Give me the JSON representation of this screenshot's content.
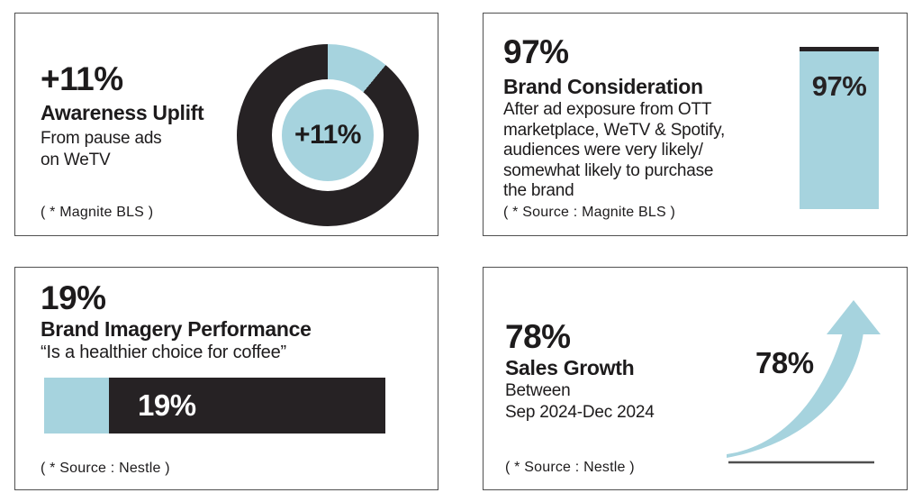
{
  "colors": {
    "accent_blue": "#a6d3de",
    "dark": "#262224",
    "border_gray": "#505050",
    "text": "#1d1b1c",
    "bar_label_white": "#ffffff"
  },
  "cards": [
    {
      "stat": "+11%",
      "title": "Awareness Uplift",
      "description": "From pause ads\non WeTV",
      "source": "( * Magnite BLS )"
    },
    {
      "stat": "97%",
      "title": "Brand Consideration",
      "description": "After ad exposure from OTT\nmarketplace, WeTV & Spotify,\naudiences were very likely/\nsomewhat likely to purchase\nthe brand",
      "source": "( * Source : Magnite BLS )"
    },
    {
      "stat": "19%",
      "title": "Brand Imagery Performance",
      "description": "“Is a healthier choice for coffee”",
      "source": "( * Source : Nestle )"
    },
    {
      "stat": "78%",
      "title": "Sales Growth",
      "description": "Between\nSep 2024-Dec 2024",
      "source": "( * Source : Nestle )"
    }
  ],
  "chart_data": [
    {
      "type": "pie",
      "subtype": "donut",
      "title": "Awareness Uplift",
      "labels": [
        "Awareness uplift",
        "Remainder"
      ],
      "values": [
        11,
        89
      ],
      "center_label": "+11%",
      "colors": [
        "#a6d3de",
        "#262224"
      ],
      "start_angle_deg": 0,
      "direction": "clockwise",
      "legend": "none"
    },
    {
      "type": "bar",
      "orientation": "vertical",
      "title": "Brand Consideration",
      "categories": [
        "Brand Consideration"
      ],
      "values": [
        97
      ],
      "data_label": "97%",
      "ylim": [
        0,
        100
      ],
      "bar_color": "#a6d3de",
      "remainder_color": "#262224",
      "axes": "hidden"
    },
    {
      "type": "bar",
      "orientation": "horizontal",
      "title": "Brand Imagery Performance",
      "categories": [
        "Is a healthier choice for coffee"
      ],
      "values": [
        19
      ],
      "data_label": "19%",
      "xlim": [
        0,
        100
      ],
      "bar_color": "#a6d3de",
      "remainder_color": "#262224",
      "axes": "hidden"
    },
    {
      "type": "line",
      "subtype": "growth-arrow",
      "title": "Sales Growth",
      "values": [
        78
      ],
      "data_label": "78%",
      "annotation": "upward curving arrow above baseline",
      "color": "#a6d3de"
    }
  ]
}
